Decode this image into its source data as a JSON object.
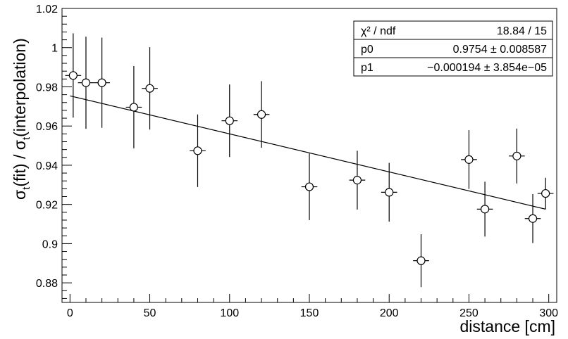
{
  "chart_data": {
    "type": "scatter",
    "xlabel": "distance [cm]",
    "ylabel": {
      "main": "σ",
      "sub": "t",
      "mid": "(fit) / σ",
      "sub2": "t",
      "tail": "(interpolation)"
    },
    "xlim": [
      -5,
      305
    ],
    "ylim": [
      0.87,
      1.02
    ],
    "x_ticks": [
      0,
      50,
      100,
      150,
      200,
      250,
      300
    ],
    "x_tick_labels": [
      "0",
      "50",
      "100",
      "150",
      "200",
      "250",
      "300"
    ],
    "y_ticks": [
      0.88,
      0.9,
      0.92,
      0.94,
      0.96,
      0.98,
      1.0,
      1.02
    ],
    "y_tick_labels": [
      "0.88",
      "0.9",
      "0.92",
      "0.94",
      "0.96",
      "0.98",
      "1",
      "1.02"
    ],
    "grid": false,
    "points": [
      {
        "x": 2,
        "y": 0.9858,
        "ex": 5,
        "ey": 0.0215
      },
      {
        "x": 10,
        "y": 0.9821,
        "ex": 5,
        "ey": 0.0235
      },
      {
        "x": 20,
        "y": 0.9821,
        "ex": 5,
        "ey": 0.023
      },
      {
        "x": 40,
        "y": 0.9696,
        "ex": 5,
        "ey": 0.021
      },
      {
        "x": 50,
        "y": 0.9792,
        "ex": 5,
        "ey": 0.021
      },
      {
        "x": 80,
        "y": 0.9474,
        "ex": 5,
        "ey": 0.0185
      },
      {
        "x": 100,
        "y": 0.9627,
        "ex": 5,
        "ey": 0.0185
      },
      {
        "x": 120,
        "y": 0.9659,
        "ex": 5,
        "ey": 0.017
      },
      {
        "x": 150,
        "y": 0.929,
        "ex": 5,
        "ey": 0.017
      },
      {
        "x": 180,
        "y": 0.9324,
        "ex": 5,
        "ey": 0.015
      },
      {
        "x": 200,
        "y": 0.9262,
        "ex": 5,
        "ey": 0.015
      },
      {
        "x": 220,
        "y": 0.8913,
        "ex": 5,
        "ey": 0.0135
      },
      {
        "x": 250,
        "y": 0.9429,
        "ex": 5,
        "ey": 0.015
      },
      {
        "x": 260,
        "y": 0.9176,
        "ex": 5,
        "ey": 0.014
      },
      {
        "x": 280,
        "y": 0.9447,
        "ex": 5,
        "ey": 0.014
      },
      {
        "x": 290,
        "y": 0.9128,
        "ex": 5,
        "ey": 0.0125
      },
      {
        "x": 298,
        "y": 0.9256,
        "ex": 5,
        "ey": 0.008
      }
    ],
    "fit": {
      "type": "linear",
      "x_range": [
        0,
        298
      ],
      "p0": 0.9754,
      "p1": -0.000194
    },
    "stats_box": {
      "rows": [
        {
          "name": "χ² / ndf",
          "value": "18.84 / 15"
        },
        {
          "name": "p0",
          "value": "0.9754 ± 0.008587"
        },
        {
          "name": "p1",
          "value": "−0.000194 ± 3.854e−05"
        }
      ],
      "placement": "top-right"
    }
  }
}
